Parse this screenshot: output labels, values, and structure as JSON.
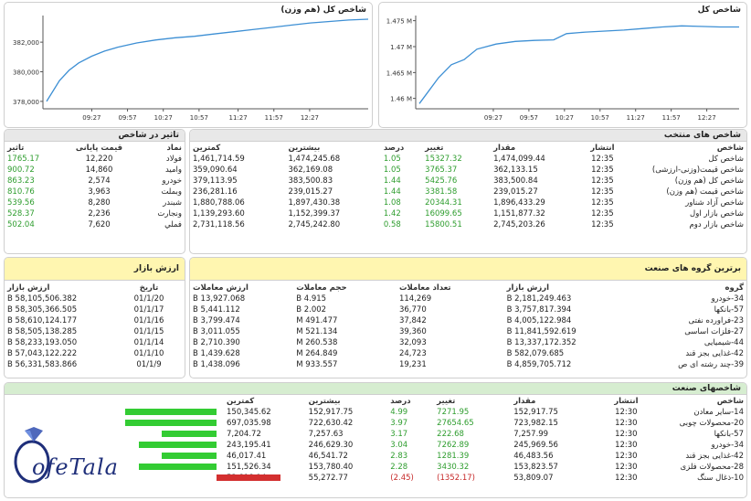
{
  "chart_data": [
    {
      "type": "line",
      "title": "شاخص کل (هم وزن)",
      "x": [
        "09:27",
        "09:57",
        "10:27",
        "10:57",
        "11:27",
        "11:57",
        "12:27"
      ],
      "y_ticks": [
        "382,000",
        "380,000",
        "378,000"
      ],
      "ylim": [
        377500,
        383800
      ],
      "points": [
        [
          0,
          378000
        ],
        [
          0.02,
          378700
        ],
        [
          0.04,
          379400
        ],
        [
          0.07,
          380100
        ],
        [
          0.1,
          380600
        ],
        [
          0.14,
          381050
        ],
        [
          0.18,
          381400
        ],
        [
          0.22,
          381650
        ],
        [
          0.28,
          381950
        ],
        [
          0.34,
          382150
        ],
        [
          0.4,
          382300
        ],
        [
          0.46,
          382400
        ],
        [
          0.52,
          382550
        ],
        [
          0.58,
          382700
        ],
        [
          0.64,
          382850
        ],
        [
          0.7,
          383000
        ],
        [
          0.76,
          383150
        ],
        [
          0.82,
          383300
        ],
        [
          0.88,
          383400
        ],
        [
          0.94,
          383500
        ],
        [
          1,
          383550
        ]
      ]
    },
    {
      "type": "line",
      "title": "شاخص کل",
      "x": [
        "09:27",
        "09:57",
        "10:27",
        "10:57",
        "11:27",
        "11:57",
        "12:27"
      ],
      "y_ticks": [
        "1.475 M",
        "1.47 M",
        "1.465 M",
        "1.46 M"
      ],
      "ylim": [
        1.458,
        1.476
      ],
      "points": [
        [
          0,
          1.459
        ],
        [
          0.03,
          1.4615
        ],
        [
          0.06,
          1.464
        ],
        [
          0.1,
          1.4665
        ],
        [
          0.14,
          1.4675
        ],
        [
          0.18,
          1.4695
        ],
        [
          0.24,
          1.4705
        ],
        [
          0.3,
          1.471
        ],
        [
          0.36,
          1.4712
        ],
        [
          0.42,
          1.4713
        ],
        [
          0.46,
          1.4725
        ],
        [
          0.52,
          1.4728
        ],
        [
          0.58,
          1.473
        ],
        [
          0.64,
          1.4732
        ],
        [
          0.7,
          1.4735
        ],
        [
          0.76,
          1.4738
        ],
        [
          0.82,
          1.474
        ],
        [
          0.88,
          1.4739
        ],
        [
          0.94,
          1.4738
        ],
        [
          1,
          1.4738
        ]
      ]
    }
  ],
  "impact": {
    "title": "تاثیر در شاخص",
    "headers": [
      "نماد",
      "قیمت پایانی",
      "تاثیر"
    ],
    "rows": [
      [
        "فولاد",
        "12,220",
        "1765.17"
      ],
      [
        "وامید",
        "14,860",
        "900.72"
      ],
      [
        "خودرو",
        "2,574",
        "863.23"
      ],
      [
        "وبملت",
        "3,963",
        "810.76"
      ],
      [
        "شبندر",
        "8,280",
        "539.56"
      ],
      [
        "ونجارت",
        "2,236",
        "528.37"
      ],
      [
        "فملي",
        "7,620",
        "502.04"
      ]
    ]
  },
  "indices": {
    "title": "شاخص های منتخب",
    "headers": [
      "شاخص",
      "انتشار",
      "مقدار",
      "تغییر",
      "درصد",
      "بیشترین",
      "کمترین"
    ],
    "rows": [
      [
        "شاخص کل",
        "12:35",
        "1,474,099.44",
        "15327.32",
        "1.05",
        "1,474,245.68",
        "1,461,714.59"
      ],
      [
        "شاخص قیمت(وزنی-ارزشی)",
        "12:35",
        "362,133.15",
        "3765.37",
        "1.05",
        "362,169.08",
        "359,090.64"
      ],
      [
        "شاخص کل (هم وزن)",
        "12:35",
        "383,500.84",
        "5425.76",
        "1.44",
        "383,500.83",
        "379,113.95"
      ],
      [
        "شاخص قیمت (هم وزن)",
        "12:35",
        "239,015.27",
        "3381.58",
        "1.44",
        "239,015.27",
        "236,281.16"
      ],
      [
        "شاخص آزاد شناور",
        "12:35",
        "1,896,433.29",
        "20344.31",
        "1.08",
        "1,897,430.38",
        "1,880,788.06"
      ],
      [
        "شاخص بازار اول",
        "12:35",
        "1,151,877.32",
        "16099.65",
        "1.42",
        "1,152,399.37",
        "1,139,293.60"
      ],
      [
        "شاخص بازار دوم",
        "12:35",
        "2,745,203.26",
        "15800.51",
        "0.58",
        "2,745,242.80",
        "2,731,118.56"
      ]
    ]
  },
  "market_value": {
    "title": "ارزش بازار",
    "headers": [
      "تاریخ",
      "ارزش بازار"
    ],
    "rows": [
      [
        "01/1/20",
        "58,105,506.382 B"
      ],
      [
        "01/1/17",
        "58,305,366.505 B"
      ],
      [
        "01/1/16",
        "58,610,124.177 B"
      ],
      [
        "01/1/15",
        "58,505,138.285 B"
      ],
      [
        "01/1/14",
        "58,233,193.050 B"
      ],
      [
        "01/1/10",
        "57,043,122.222 B"
      ],
      [
        "01/1/9",
        "56,331,583.866 B"
      ]
    ]
  },
  "top_groups": {
    "title": "برترین گروه های صنعت",
    "headers": [
      "گروه",
      "ارزش بازار",
      "تعداد معاملات",
      "حجم معاملات",
      "ارزش معاملات"
    ],
    "rows": [
      [
        "34-خودرو",
        "2,181,249.463 B",
        "114,269",
        "4.915 B",
        "13,927.068 B"
      ],
      [
        "57-بانکها",
        "3,757,817.394 B",
        "36,770",
        "2.002 B",
        "5,441.112 B"
      ],
      [
        "23-فراورده نفتی",
        "4,005,122.984 B",
        "37,842",
        "491.477 M",
        "3,799.474 B"
      ],
      [
        "27-فلزات اساسی",
        "11,841,592.619 B",
        "39,360",
        "521.134 M",
        "3,011.055 B"
      ],
      [
        "44-شیمیایی",
        "13,337,172.352 B",
        "32,093",
        "260.538 M",
        "2,710.390 B"
      ],
      [
        "42-غذایی بجز قند",
        "582,079.685 B",
        "24,723",
        "264.849 M",
        "1,439.628 B"
      ],
      [
        "39-چند رشته ای ص",
        "4,859,705.712 B",
        "19,231",
        "933.557 M",
        "1,438.096 B"
      ]
    ]
  },
  "industry": {
    "title": "شاخصهای صنعت",
    "headers": [
      "شاخص",
      "انتشار",
      "مقدار",
      "تغییر",
      "درصد",
      "بیشترین",
      "کمترین"
    ],
    "rows": [
      [
        "14-سایر معادن",
        "12:30",
        "152,917.75",
        "7271.95",
        "4.99",
        "152,917.75",
        "150,345.62"
      ],
      [
        "20-محصولات چوبی",
        "12:30",
        "723,982.15",
        "27654.65",
        "3.97",
        "722,630.42",
        "697,035.98"
      ],
      [
        "57-بانکها",
        "12:30",
        "7,257.99",
        "222.68",
        "3.17",
        "7,257.63",
        "7,204.72"
      ],
      [
        "34-خودرو",
        "12:30",
        "245,969.56",
        "7262.89",
        "3.04",
        "246,629.30",
        "243,195.41"
      ],
      [
        "42-غذایی بجز قند",
        "12:30",
        "46,483.56",
        "1281.39",
        "2.83",
        "46,541.72",
        "46,017.41"
      ],
      [
        "28-محصولات فلزی",
        "12:30",
        "153,823.57",
        "3430.32",
        "2.28",
        "153,780.40",
        "151,526.34"
      ],
      [
        "10-ذغال سنگ",
        "12:30",
        "53,809.07",
        "(1352.17)",
        "(2.45)",
        "55,272.77",
        "53,818.14"
      ]
    ],
    "bars": [
      1.0,
      1.0,
      0.6,
      0.85,
      0.6,
      0.85,
      -0.7
    ]
  },
  "logo": {
    "text": "ofeTala"
  },
  "colors": {
    "green": "#2e9d2e",
    "red": "#c62828",
    "bar_green": "#33cc33",
    "bar_red": "#d32f2f",
    "line": "#3d8fd4"
  }
}
